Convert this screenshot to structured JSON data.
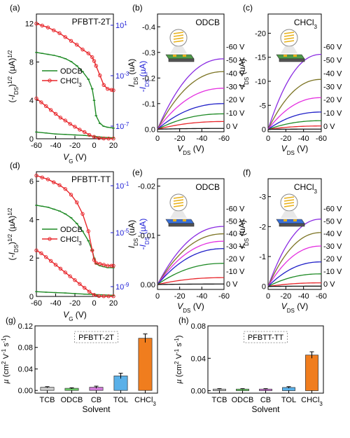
{
  "colors": {
    "red": "#e8262b",
    "green": "#1e8a25",
    "blue": "#1b1bd6",
    "olive": "#7c7424",
    "magenta": "#e42fe0",
    "purple": "#8a2be2",
    "navy": "#2020c8",
    "black": "#111111"
  },
  "chart_data": [
    {
      "panel": "(a)",
      "type": "line",
      "title": "PFBTT-2T",
      "xlabel": "V_G (V)",
      "ylabel": "(-I_DS)^1/2 (µA)^1/2",
      "y2label": "-I_DS (µA)",
      "xlim": [
        -60,
        20
      ],
      "ylim": [
        0,
        13
      ],
      "xticks": [
        "-60",
        "-40",
        "-20",
        "0",
        "20"
      ],
      "yticks": [
        "0",
        "4",
        "8",
        "12"
      ],
      "y2ticks": [
        "10^-7",
        "10^-3",
        "10^1"
      ],
      "legend": "center-left",
      "series": [
        {
          "name": "ODCB",
          "color": "green",
          "axis": "sqrt",
          "x": [
            -60,
            -54,
            -48,
            -42,
            -36,
            -30,
            -24,
            -18,
            -12,
            -6,
            -2,
            0,
            2,
            6,
            10,
            14,
            18,
            20
          ],
          "y": [
            9.0,
            8.9,
            8.8,
            8.7,
            8.55,
            8.35,
            8.05,
            7.6,
            7.0,
            6.2,
            5.2,
            4.0,
            2.4,
            1.6,
            1.3,
            1.2,
            1.15,
            1.1
          ]
        },
        {
          "name": "CHCl3",
          "color": "red",
          "axis": "sqrt",
          "x": [
            -60,
            -54,
            -48,
            -42,
            -36,
            -30,
            -24,
            -18,
            -12,
            -6,
            -2,
            0,
            2,
            6,
            10,
            14,
            18,
            20
          ],
          "y": [
            12.0,
            11.8,
            11.6,
            11.3,
            11.0,
            10.6,
            10.2,
            9.8,
            9.3,
            8.9,
            8.5,
            8.1,
            7.6,
            6.6,
            5.6,
            5.2,
            5.1,
            5.05
          ]
        },
        {
          "name": "ODCB log",
          "color": "green",
          "axis": "log",
          "x": [
            -60,
            -50,
            -40,
            -30,
            -20,
            -10,
            0,
            10,
            20
          ],
          "y": [
            0.7,
            0.6,
            0.5,
            0.45,
            0.4,
            0.35,
            0.25,
            0.15,
            0.1
          ]
        },
        {
          "name": "CHCl3 log",
          "color": "red",
          "axis": "log",
          "x": [
            -60,
            -55,
            -50,
            -45,
            -40,
            -35,
            -30,
            -25,
            -20,
            -15,
            -10,
            -5,
            0,
            5,
            10,
            15,
            20
          ],
          "y": [
            4.2,
            3.8,
            3.4,
            3.0,
            2.6,
            2.2,
            1.9,
            1.55,
            1.25,
            0.95,
            0.7,
            0.4,
            0.2,
            0.08,
            0.03,
            0.02,
            0.02
          ]
        }
      ]
    },
    {
      "panel": "(b)",
      "type": "line",
      "title": "ODCB",
      "xlabel": "V_DS (V)",
      "ylabel": "I_DS (uA)",
      "xlim": [
        0,
        -60
      ],
      "ylim": [
        0.01,
        -0.45
      ],
      "xticks": [
        "0",
        "-20",
        "-40",
        "-60"
      ],
      "yticks": [
        "0.0",
        "-0.1",
        "-0.2",
        "-0.3",
        "-0.4"
      ],
      "series": [
        {
          "name": "-60 V",
          "color": "purple",
          "end": -0.275
        },
        {
          "name": "-50 V",
          "color": "olive",
          "end": -0.225
        },
        {
          "name": "-40 V",
          "color": "magenta",
          "end": -0.16
        },
        {
          "name": "-30 V",
          "color": "navy",
          "end": -0.1
        },
        {
          "name": "-20 V",
          "color": "green",
          "end": -0.06
        },
        {
          "name": "-10 V",
          "color": "red",
          "end": -0.03
        },
        {
          "name": "0 V",
          "color": "black",
          "end": -0.003
        }
      ]
    },
    {
      "panel": "(c)",
      "type": "line",
      "title": "CHCl3",
      "xlabel": "V_DS (V)",
      "ylabel": "I_DS (uA)",
      "xlim": [
        0,
        -60
      ],
      "ylim": [
        0.5,
        -24
      ],
      "xticks": [
        "0",
        "-20",
        "-40",
        "-60"
      ],
      "yticks": [
        "0",
        "-5",
        "-10",
        "-15",
        "-20"
      ],
      "series": [
        {
          "name": "-60 V",
          "color": "purple",
          "end": -15.6
        },
        {
          "name": "-50 V",
          "color": "olive",
          "end": -10.4
        },
        {
          "name": "-40 V",
          "color": "magenta",
          "end": -6.6
        },
        {
          "name": "-30 V",
          "color": "navy",
          "end": -3.6
        },
        {
          "name": "-20 V",
          "color": "green",
          "end": -1.8
        },
        {
          "name": "-10 V",
          "color": "red",
          "end": -0.7
        },
        {
          "name": "0 V",
          "color": "black",
          "end": -0.05
        }
      ]
    },
    {
      "panel": "(d)",
      "type": "line",
      "title": "PFBTT-TT",
      "xlabel": "V_G (V)",
      "ylabel": "(-I_DS)^1/2 (µA)^1/2",
      "y2label": "-I_DS (µA)",
      "xlim": [
        -60,
        20
      ],
      "ylim": [
        0,
        6.5
      ],
      "xticks": [
        "-60",
        "-40",
        "-20",
        "0",
        "20"
      ],
      "yticks": [
        "0",
        "2",
        "4",
        "6"
      ],
      "y2ticks": [
        "10^-9",
        "10^-5",
        "10^-1"
      ],
      "legend": "center-left",
      "series": [
        {
          "name": "ODCB",
          "color": "green",
          "axis": "sqrt",
          "x": [
            -60,
            -54,
            -48,
            -42,
            -36,
            -30,
            -24,
            -18,
            -12,
            -6,
            -2,
            0,
            2,
            6,
            10,
            14,
            18,
            20
          ],
          "y": [
            4.75,
            4.7,
            4.65,
            4.55,
            4.45,
            4.3,
            4.1,
            3.8,
            3.4,
            2.9,
            2.4,
            2.0,
            1.7,
            1.6,
            1.55,
            1.5,
            1.5,
            1.5
          ]
        },
        {
          "name": "CHCl3",
          "color": "red",
          "axis": "sqrt",
          "x": [
            -60,
            -54,
            -48,
            -42,
            -36,
            -30,
            -24,
            -18,
            -12,
            -6,
            -2,
            0,
            2,
            6,
            10,
            14,
            18,
            20
          ],
          "y": [
            6.3,
            6.2,
            6.1,
            5.95,
            5.8,
            5.6,
            5.3,
            4.9,
            4.3,
            3.4,
            2.4,
            1.9,
            1.75,
            1.7,
            1.65,
            1.6,
            1.6,
            1.6
          ]
        },
        {
          "name": "ODCB log",
          "color": "green",
          "axis": "log",
          "x": [
            -60,
            -50,
            -40,
            -30,
            -20,
            -10,
            0,
            10,
            20
          ],
          "y": [
            0.25,
            0.22,
            0.2,
            0.18,
            0.15,
            0.12,
            0.1,
            0.08,
            0.06
          ]
        },
        {
          "name": "CHCl3 log",
          "color": "red",
          "axis": "log",
          "x": [
            -60,
            -55,
            -50,
            -45,
            -40,
            -35,
            -30,
            -25,
            -20,
            -15,
            -10,
            -5,
            0,
            5,
            10,
            15,
            20
          ],
          "y": [
            2.4,
            2.25,
            2.05,
            1.85,
            1.65,
            1.45,
            1.25,
            1.05,
            0.85,
            0.65,
            0.45,
            0.25,
            0.08,
            0.02,
            0.01,
            0.01,
            0.01
          ]
        }
      ]
    },
    {
      "panel": "(e)",
      "type": "line",
      "title": "ODCB",
      "xlabel": "V_DS (V)",
      "ylabel": "I_DS (uA)",
      "xlim": [
        0,
        -60
      ],
      "ylim": [
        0.001,
        -0.0215
      ],
      "xticks": [
        "0",
        "-20",
        "-40",
        "-60"
      ],
      "yticks": [
        "0.00",
        "-0.01",
        "-0.02"
      ],
      "series": [
        {
          "name": "-60 V",
          "color": "purple",
          "end": -0.0118
        },
        {
          "name": "-50 V",
          "color": "olive",
          "end": -0.0103
        },
        {
          "name": "-40 V",
          "color": "magenta",
          "end": -0.0088
        },
        {
          "name": "-30 V",
          "color": "navy",
          "end": -0.0073
        },
        {
          "name": "-20 V",
          "color": "green",
          "end": -0.0043
        },
        {
          "name": "-10 V",
          "color": "red",
          "end": -0.0014
        },
        {
          "name": "0 V",
          "color": "black",
          "end": -0.0001
        }
      ]
    },
    {
      "panel": "(f)",
      "type": "line",
      "title": "CHCl3",
      "xlabel": "V_DS (V)",
      "ylabel": "I_DS (uA)",
      "xlim": [
        0,
        -60
      ],
      "ylim": [
        0.1,
        -3.6
      ],
      "xticks": [
        "0",
        "-20",
        "-40",
        "-60"
      ],
      "yticks": [
        "0",
        "-1",
        "-2",
        "-3"
      ],
      "series": [
        {
          "name": "-60 V",
          "color": "purple",
          "end": -2.25
        },
        {
          "name": "-50 V",
          "color": "olive",
          "end": -1.8
        },
        {
          "name": "-40 V",
          "color": "magenta",
          "end": -1.35
        },
        {
          "name": "-30 V",
          "color": "navy",
          "end": -0.82
        },
        {
          "name": "-20 V",
          "color": "green",
          "end": -0.42
        },
        {
          "name": "-10 V",
          "color": "red",
          "end": -0.12
        },
        {
          "name": "0 V",
          "color": "black",
          "end": -0.01
        }
      ]
    },
    {
      "panel": "(g)",
      "type": "bar",
      "title": "PFBTT-2T",
      "xlabel": "Solvent",
      "ylabel": "µ (cm² V⁻¹ s⁻¹)",
      "ylim": [
        -0.005,
        0.12
      ],
      "yticks": [
        "0.00",
        "0.04",
        "0.08",
        "0.12"
      ],
      "categories": [
        "TCB",
        "ODCB",
        "CB",
        "TOL",
        "CHCl3"
      ],
      "values": [
        0.006,
        0.004,
        0.006,
        0.027,
        0.097
      ],
      "errors": [
        0.001,
        0.001,
        0.002,
        0.005,
        0.008
      ]
    },
    {
      "panel": "(h)",
      "type": "bar",
      "title": "PFBTT-TT",
      "xlabel": "Solvent",
      "ylabel": "µ (cm² V⁻¹ s⁻¹)",
      "ylim": [
        -0.003,
        0.08
      ],
      "yticks": [
        "0.00",
        "0.04",
        "0.08"
      ],
      "categories": [
        "TCB",
        "ODCB",
        "CB",
        "TOL",
        "CHCl3"
      ],
      "values": [
        0.002,
        0.002,
        0.002,
        0.004,
        0.044
      ],
      "errors": [
        0.0005,
        0.0005,
        0.0005,
        0.001,
        0.004
      ]
    }
  ]
}
